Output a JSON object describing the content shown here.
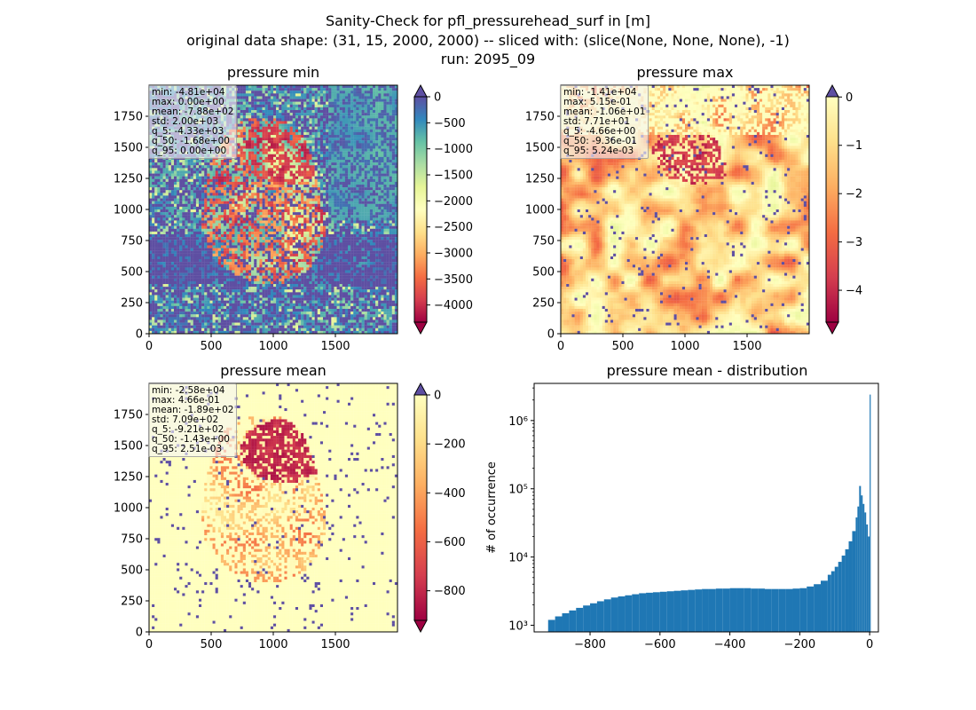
{
  "figure": {
    "title_line1": "Sanity-Check for pfl_pressurehead_surf in [m]",
    "title_line2": "original data shape: (31, 15, 2000, 2000) -- sliced with: (slice(None, None, None), -1)",
    "title_line3": "run: 2095_09"
  },
  "colors": {
    "colormap": "Spectral",
    "hist_bar": "#1f77b4",
    "over_color_min": "#5e4fa2",
    "over_color_max": "#5e4fa2",
    "over_color_mean": "#5e4fa2"
  },
  "panels": {
    "min": {
      "title": "pressure min",
      "stats": [
        "min: -4.81e+04",
        "max: 0.00e+00",
        "mean: -7.88e+02",
        "std: 2.00e+03",
        "q_5: -4.33e+03",
        "q_50: -1.68e+00",
        "q_95: 0.00e+00"
      ]
    },
    "max": {
      "title": "pressure max",
      "stats": [
        "min: -1.41e+04",
        "max: 5.15e-01",
        "mean: -1.06e+01",
        "std: 7.71e+01",
        "q_5: -4.66e+00",
        "q_50: -9.36e-01",
        "q_95: 5.24e-03"
      ]
    },
    "mean": {
      "title": "pressure mean",
      "stats": [
        "min: -2.58e+04",
        "max: 4.66e-01",
        "mean: -1.89e+02",
        "std: 7.09e+02",
        "q_5: -9.21e+02",
        "q_50: -1.43e+00",
        "q_95: 2.51e-03"
      ]
    },
    "hist": {
      "title": "pressure mean - distribution",
      "ylabel": "# of occurrence"
    }
  },
  "chart_data": [
    {
      "type": "heatmap",
      "title": "pressure min",
      "x_ticks": [
        "0",
        "500",
        "1000",
        "1500"
      ],
      "y_ticks": [
        "0",
        "250",
        "500",
        "750",
        "1000",
        "1250",
        "1500",
        "1750"
      ],
      "xlim": [
        0,
        2000
      ],
      "ylim": [
        0,
        2000
      ],
      "colorbar": {
        "range": [
          -4330,
          0
        ],
        "ticks": [
          "0",
          "−500",
          "−1000",
          "−1500",
          "−2000",
          "−2500",
          "−3000",
          "−3500",
          "−4000"
        ],
        "tick_values": [
          0,
          -500,
          -1000,
          -1500,
          -2000,
          -2500,
          -3000,
          -3500,
          -4000
        ],
        "extend": "both"
      }
    },
    {
      "type": "heatmap",
      "title": "pressure max",
      "x_ticks": [
        "0",
        "500",
        "1000",
        "1500"
      ],
      "y_ticks": [
        "0",
        "250",
        "500",
        "750",
        "1000",
        "1250",
        "1500",
        "1750"
      ],
      "xlim": [
        0,
        2000
      ],
      "ylim": [
        0,
        2000
      ],
      "colorbar": {
        "range": [
          -4.66,
          0.0052
        ],
        "ticks": [
          "0",
          "−1",
          "−2",
          "−3",
          "−4"
        ],
        "tick_values": [
          0,
          -1,
          -2,
          -3,
          -4
        ],
        "extend": "both"
      }
    },
    {
      "type": "heatmap",
      "title": "pressure mean",
      "x_ticks": [
        "0",
        "500",
        "1000",
        "1500"
      ],
      "y_ticks": [
        "0",
        "250",
        "500",
        "750",
        "1000",
        "1250",
        "1500",
        "1750"
      ],
      "xlim": [
        0,
        2000
      ],
      "ylim": [
        0,
        2000
      ],
      "colorbar": {
        "range": [
          -921,
          0.0025
        ],
        "ticks": [
          "0",
          "−200",
          "−400",
          "−600",
          "−800"
        ],
        "tick_values": [
          0,
          -200,
          -400,
          -600,
          -800
        ],
        "extend": "both"
      }
    },
    {
      "type": "bar",
      "title": "pressure mean - distribution",
      "ylabel": "# of occurrence",
      "y_scale": "log",
      "xlim": [
        -960,
        25
      ],
      "ylim": [
        800,
        3500000
      ],
      "x_ticks": [
        "−800",
        "−600",
        "−400",
        "−200",
        "0"
      ],
      "x_tick_values": [
        -800,
        -600,
        -400,
        -200,
        0
      ],
      "y_ticks": [
        "10³",
        "10⁴",
        "10⁵",
        "10⁶"
      ],
      "y_tick_values": [
        1000,
        10000,
        100000,
        1000000
      ],
      "x": [
        -920,
        -900,
        -880,
        -860,
        -840,
        -820,
        -800,
        -780,
        -760,
        -740,
        -720,
        -700,
        -680,
        -660,
        -640,
        -620,
        -600,
        -580,
        -560,
        -540,
        -520,
        -500,
        -480,
        -460,
        -440,
        -420,
        -400,
        -380,
        -360,
        -340,
        -320,
        -300,
        -280,
        -260,
        -240,
        -220,
        -200,
        -180,
        -160,
        -140,
        -120,
        -110,
        -100,
        -90,
        -80,
        -70,
        -60,
        -50,
        -40,
        -35,
        -30,
        -25,
        -20,
        -15,
        -10,
        -5,
        0
      ],
      "values": [
        1200,
        1350,
        1500,
        1650,
        1800,
        1950,
        2100,
        2250,
        2400,
        2550,
        2650,
        2750,
        2850,
        2950,
        3000,
        3050,
        3100,
        3150,
        3200,
        3250,
        3300,
        3350,
        3400,
        3400,
        3450,
        3450,
        3500,
        3500,
        3500,
        3450,
        3450,
        3400,
        3400,
        3400,
        3400,
        3450,
        3500,
        3700,
        4000,
        4500,
        5500,
        6200,
        7200,
        8500,
        10500,
        13000,
        17000,
        24000,
        38000,
        55000,
        110000,
        80000,
        60000,
        45000,
        30000,
        20000,
        2400000
      ]
    }
  ]
}
